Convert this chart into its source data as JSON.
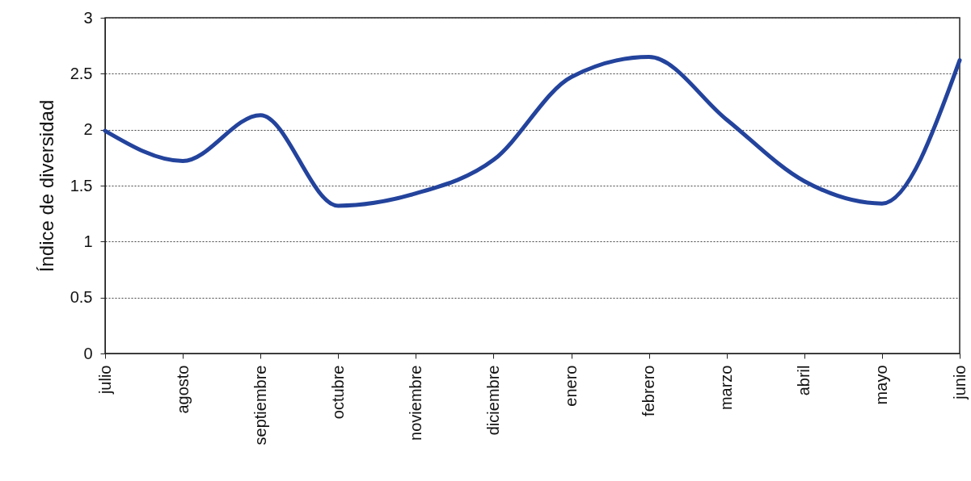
{
  "chart_data": {
    "type": "line",
    "ylabel": "Índice de diversidad",
    "categories": [
      "julio",
      "agosto",
      "septiembre",
      "octubre",
      "noviembre",
      "diciembre",
      "enero",
      "febrero",
      "marzo",
      "abril",
      "mayo",
      "junio"
    ],
    "series": [
      {
        "color": "#23439c",
        "values": [
          1.99,
          1.72,
          2.13,
          1.32,
          1.43,
          1.73,
          2.47,
          2.65,
          2.09,
          1.54,
          1.34,
          2.62
        ]
      }
    ],
    "ylim": [
      0,
      3
    ],
    "yticks": [
      0,
      0.5,
      1,
      1.5,
      2,
      2.5,
      3
    ],
    "grid": "y",
    "marker": "none",
    "line_style": "solid"
  }
}
